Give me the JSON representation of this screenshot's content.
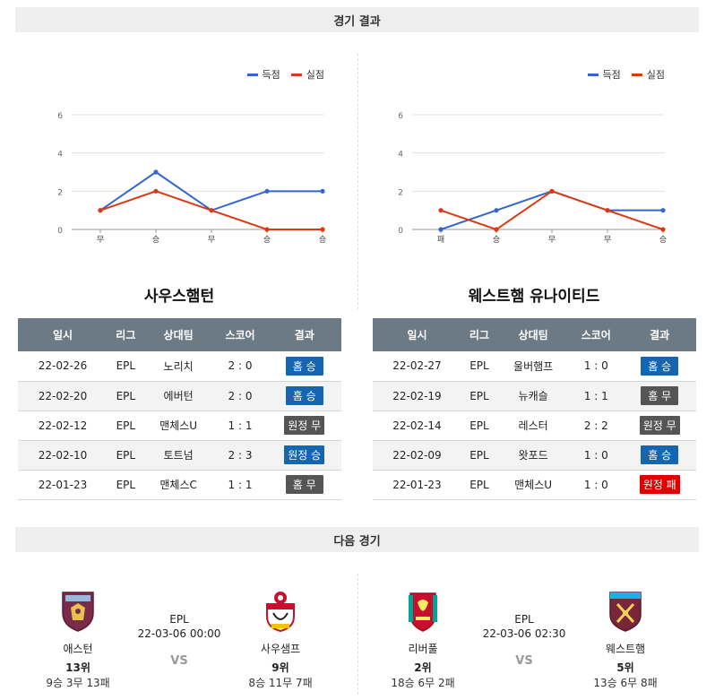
{
  "sections": {
    "results_title": "경기 결과",
    "next_title": "다음 경기"
  },
  "legend": {
    "scored": "득점",
    "conceded": "실점"
  },
  "colors": {
    "scored": "#3366cc",
    "conceded": "#dc3912",
    "win": "#1565b0",
    "draw": "#555555",
    "loss": "#e00000"
  },
  "chart_data": [
    {
      "type": "line",
      "categories": [
        "무",
        "승",
        "무",
        "승",
        "승"
      ],
      "series": [
        {
          "name": "득점",
          "values": [
            1,
            3,
            1,
            2,
            2
          ]
        },
        {
          "name": "실점",
          "values": [
            1,
            2,
            1,
            0,
            0
          ]
        }
      ],
      "yticks": [
        "0",
        "2",
        "4",
        "6"
      ],
      "ylim": [
        0,
        6
      ],
      "grid": true,
      "legend_position": "top-right"
    },
    {
      "type": "line",
      "categories": [
        "패",
        "승",
        "무",
        "무",
        "승"
      ],
      "series": [
        {
          "name": "득점",
          "values": [
            0,
            1,
            2,
            1,
            1
          ]
        },
        {
          "name": "실점",
          "values": [
            1,
            0,
            2,
            1,
            0
          ]
        }
      ],
      "yticks": [
        "0",
        "2",
        "4",
        "6"
      ],
      "ylim": [
        0,
        6
      ],
      "grid": true,
      "legend_position": "top-right"
    }
  ],
  "teams": [
    {
      "title": "사우스햄턴",
      "headers": [
        "일시",
        "리그",
        "상대팀",
        "스코어",
        "결과"
      ],
      "rows": [
        {
          "date": "22-02-26",
          "league": "EPL",
          "opponent": "노리치",
          "score": "2 : 0",
          "result": "홈 승",
          "kind": "win"
        },
        {
          "date": "22-02-20",
          "league": "EPL",
          "opponent": "에버턴",
          "score": "2 : 0",
          "result": "홈 승",
          "kind": "win"
        },
        {
          "date": "22-02-12",
          "league": "EPL",
          "opponent": "맨체스U",
          "score": "1 : 1",
          "result": "원정 무",
          "kind": "draw"
        },
        {
          "date": "22-02-10",
          "league": "EPL",
          "opponent": "토트넘",
          "score": "2 : 3",
          "result": "원정 승",
          "kind": "win"
        },
        {
          "date": "22-01-23",
          "league": "EPL",
          "opponent": "맨체스C",
          "score": "1 : 1",
          "result": "홈 무",
          "kind": "draw"
        }
      ]
    },
    {
      "title": "웨스트햄 유나이티드",
      "headers": [
        "일시",
        "리그",
        "상대팀",
        "스코어",
        "결과"
      ],
      "rows": [
        {
          "date": "22-02-27",
          "league": "EPL",
          "opponent": "울버햄프",
          "score": "1 : 0",
          "result": "홈 승",
          "kind": "win"
        },
        {
          "date": "22-02-19",
          "league": "EPL",
          "opponent": "뉴캐슬",
          "score": "1 : 1",
          "result": "홈 무",
          "kind": "draw"
        },
        {
          "date": "22-02-14",
          "league": "EPL",
          "opponent": "레스터",
          "score": "2 : 2",
          "result": "원정 무",
          "kind": "draw"
        },
        {
          "date": "22-02-09",
          "league": "EPL",
          "opponent": "왓포드",
          "score": "1 : 0",
          "result": "홈 승",
          "kind": "win"
        },
        {
          "date": "22-01-23",
          "league": "EPL",
          "opponent": "맨체스U",
          "score": "1 : 0",
          "result": "원정 패",
          "kind": "loss"
        }
      ]
    }
  ],
  "next_matches": [
    {
      "league": "EPL",
      "datetime": "22-03-06 00:00",
      "vs": "VS",
      "home": {
        "name": "애스턴",
        "rank": "13위",
        "record": "9승 3무 13패",
        "crest": "aston-villa-crest"
      },
      "away": {
        "name": "사우샘프",
        "rank": "9위",
        "record": "8승 11무 7패",
        "crest": "southampton-crest"
      }
    },
    {
      "league": "EPL",
      "datetime": "22-03-06 02:30",
      "vs": "VS",
      "home": {
        "name": "리버풀",
        "rank": "2위",
        "record": "18승 6무 2패",
        "crest": "liverpool-crest"
      },
      "away": {
        "name": "웨스트햄",
        "rank": "5위",
        "record": "13승 6무 8패",
        "crest": "west-ham-crest"
      }
    }
  ]
}
